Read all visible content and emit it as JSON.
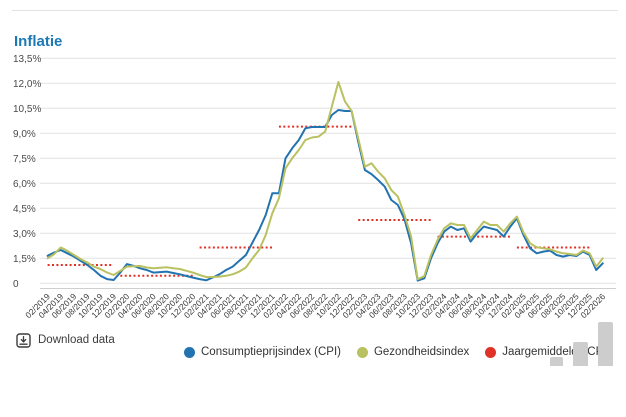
{
  "page": {
    "title": "Inflatie"
  },
  "toolbar": {
    "download_label": "Download data"
  },
  "legend": [
    {
      "label": "Consumptieprijsindex (CPI)",
      "color": "#2273b0"
    },
    {
      "label": "Gezondheidsindex",
      "color": "#b9c160"
    },
    {
      "label": "Jaargemiddelde CPI",
      "color": "#e03127"
    }
  ],
  "chart_data": {
    "type": "line",
    "title": "Inflatie",
    "ylabel": "",
    "xlabel": "",
    "ylim": [
      0,
      13.5
    ],
    "grid": true,
    "legend_position": "bottom",
    "y_ticks": [
      {
        "value": 13.5,
        "label": "13,5%"
      },
      {
        "value": 12.0,
        "label": "12,0%"
      },
      {
        "value": 10.5,
        "label": "10,5%"
      },
      {
        "value": 9.0,
        "label": "9,0%"
      },
      {
        "value": 7.5,
        "label": "7,5%"
      },
      {
        "value": 6.0,
        "label": "6,0%"
      },
      {
        "value": 4.5,
        "label": "4,5%"
      },
      {
        "value": 3.0,
        "label": "3,0%"
      },
      {
        "value": 1.5,
        "label": "1,5%"
      },
      {
        "value": 0,
        "label": "0"
      }
    ],
    "x_tick_labels": [
      "02/2019",
      "04/2019",
      "06/2019",
      "08/2019",
      "10/2019",
      "12/2019",
      "02/2020",
      "04/2020",
      "06/2020",
      "08/2020",
      "10/2020",
      "12/2020",
      "02/2021",
      "04/2021",
      "06/2021",
      "08/2021",
      "10/2021",
      "12/2021",
      "02/2022",
      "04/2022",
      "06/2022",
      "08/2022",
      "10/2022",
      "12/2022",
      "02/2023",
      "04/2023",
      "06/2023",
      "08/2023",
      "10/2023",
      "12/2023",
      "02/2024",
      "04/2024",
      "06/2024",
      "08/2024",
      "10/2024",
      "12/2024",
      "02/2025",
      "04/2025",
      "06/2025",
      "08/2025",
      "10/2025",
      "12/2025",
      "02/2026"
    ],
    "x_months_total": 85,
    "series": [
      {
        "name": "Consumptieprijsindex (CPI)",
        "color": "#2273b0",
        "values": [
          1.65,
          1.85,
          2.0,
          1.8,
          1.6,
          1.35,
          1.1,
          0.8,
          0.45,
          0.25,
          0.2,
          0.65,
          1.15,
          1.05,
          0.9,
          0.8,
          0.64,
          0.67,
          0.7,
          0.62,
          0.54,
          0.44,
          0.34,
          0.25,
          0.18,
          0.35,
          0.54,
          0.8,
          1.0,
          1.35,
          1.7,
          2.45,
          3.2,
          4.1,
          5.4,
          5.4,
          7.5,
          8.1,
          8.6,
          9.3,
          9.38,
          9.38,
          9.38,
          10.1,
          10.4,
          10.34,
          10.34,
          8.5,
          6.8,
          6.55,
          6.2,
          5.8,
          5.0,
          4.7,
          3.84,
          2.4,
          0.16,
          0.3,
          1.5,
          2.4,
          3.1,
          3.4,
          3.2,
          3.3,
          2.5,
          3.0,
          3.4,
          3.3,
          3.2,
          2.8,
          3.4,
          3.9,
          2.9,
          2.1,
          1.8,
          1.9,
          1.96,
          1.7,
          1.6,
          1.7,
          1.64,
          1.9,
          1.7,
          0.8,
          1.2
        ]
      },
      {
        "name": "Gezondheidsindex",
        "color": "#b9c160",
        "values": [
          1.5,
          1.75,
          2.15,
          1.95,
          1.7,
          1.45,
          1.25,
          1.0,
          0.85,
          0.65,
          0.5,
          0.75,
          1.0,
          1.02,
          1.04,
          0.95,
          0.9,
          0.93,
          0.96,
          0.9,
          0.86,
          0.75,
          0.64,
          0.5,
          0.38,
          0.38,
          0.4,
          0.45,
          0.54,
          0.7,
          0.95,
          1.5,
          2.0,
          2.9,
          4.2,
          5.1,
          6.9,
          7.5,
          8.0,
          8.6,
          8.75,
          8.8,
          9.1,
          10.6,
          12.08,
          10.9,
          10.34,
          8.7,
          7.0,
          7.2,
          6.7,
          6.3,
          5.6,
          5.2,
          4.1,
          2.8,
          0.24,
          0.44,
          1.7,
          2.6,
          3.3,
          3.6,
          3.5,
          3.5,
          2.7,
          3.2,
          3.7,
          3.5,
          3.5,
          3.1,
          3.6,
          4.0,
          3.05,
          2.4,
          2.16,
          2.1,
          2.04,
          1.9,
          1.8,
          1.76,
          1.7,
          1.96,
          1.8,
          1.0,
          1.5
        ]
      }
    ],
    "annual_average_segments": [
      {
        "year": 2019,
        "value": 1.1,
        "from_index": 0,
        "to_index": 10,
        "from": "02/2019",
        "to": "12/2019"
      },
      {
        "year": 2020,
        "value": 0.45,
        "from_index": 11,
        "to_index": 22,
        "from": "01/2020",
        "to": "12/2020"
      },
      {
        "year": 2021,
        "value": 2.15,
        "from_index": 23,
        "to_index": 34,
        "from": "01/2021",
        "to": "12/2021"
      },
      {
        "year": 2022,
        "value": 9.4,
        "from_index": 35,
        "to_index": 46,
        "from": "01/2022",
        "to": "12/2022"
      },
      {
        "year": 2023,
        "value": 3.8,
        "from_index": 47,
        "to_index": 58,
        "from": "01/2023",
        "to": "12/2023"
      },
      {
        "year": 2024,
        "value": 2.8,
        "from_index": 59,
        "to_index": 70,
        "from": "01/2024",
        "to": "12/2024"
      },
      {
        "year": 2025,
        "value": 2.15,
        "from_index": 71,
        "to_index": 82,
        "from": "01/2025",
        "to": "12/2025"
      }
    ],
    "annual_average_color": "#e03127"
  }
}
